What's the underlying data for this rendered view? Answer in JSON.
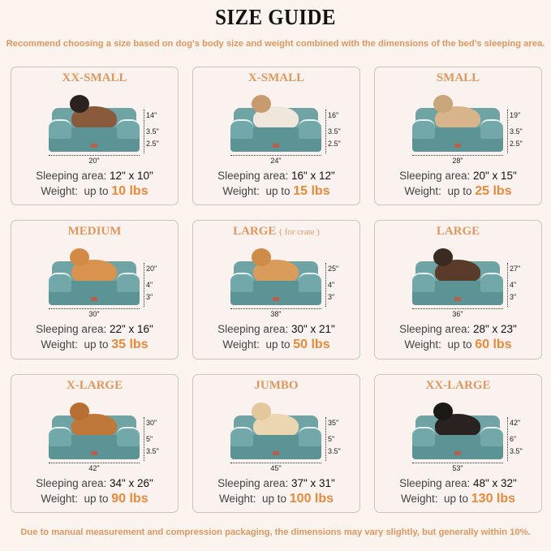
{
  "title": "SIZE GUIDE",
  "subtitle": "Recommend choosing a size based on dog's body size and weight combined with the dimensions of the bed's sleeping area.",
  "footer": "Due to manual measurement and compression packaging, the dimensions may vary slightly, but generally within 10%.",
  "labels": {
    "sleeping": "Sleeping area:",
    "weight": "Weight:",
    "up_to": "up to"
  },
  "colors": {
    "accent": "#e0975f",
    "weight": "#e88a3c",
    "bed": "#5c9496",
    "background": "#fbf3ee"
  },
  "sizes": [
    {
      "name": "XX-SMALL",
      "note": "",
      "height": "14\"",
      "top": "3.5\"",
      "bottom": "2.5\"",
      "width": "20\"",
      "sleeping": "12\" x 10\"",
      "weight": "10 lbs",
      "pet_color": "#8a5a3c",
      "head_color": "#2b2220"
    },
    {
      "name": "X-SMALL",
      "note": "",
      "height": "16\"",
      "top": "3.5\"",
      "bottom": "2.5\"",
      "width": "24\"",
      "sleeping": "16\" x 12\"",
      "weight": "15 lbs",
      "pet_color": "#efe6dc",
      "head_color": "#c99a6e"
    },
    {
      "name": "SMALL",
      "note": "",
      "height": "19\"",
      "top": "3.5\"",
      "bottom": "2.5\"",
      "width": "28\"",
      "sleeping": "20\" x 15\"",
      "weight": "25 lbs",
      "pet_color": "#d7b48a",
      "head_color": "#c9a57a"
    },
    {
      "name": "MEDIUM",
      "note": "",
      "height": "20\"",
      "top": "4\"",
      "bottom": "3\"",
      "width": "30\"",
      "sleeping": "22\" x 16\"",
      "weight": "35 lbs",
      "pet_color": "#d9934f",
      "head_color": "#d38a45"
    },
    {
      "name": "LARGE",
      "note": "( for crate )",
      "height": "25\"",
      "top": "4\"",
      "bottom": "3\"",
      "width": "38\"",
      "sleeping": "30\" x 21\"",
      "weight": "50 lbs",
      "pet_color": "#d99c5a",
      "head_color": "#cf8c48"
    },
    {
      "name": "LARGE",
      "note": "",
      "height": "27\"",
      "top": "4\"",
      "bottom": "3\"",
      "width": "36\"",
      "sleeping": "28\" x 23\"",
      "weight": "60 lbs",
      "pet_color": "#5a3a28",
      "head_color": "#3b2a20"
    },
    {
      "name": "X-LARGE",
      "note": "",
      "height": "30\"",
      "top": "5\"",
      "bottom": "3.5\"",
      "width": "42\"",
      "sleeping": "34\" x 26\"",
      "weight": "90 lbs",
      "pet_color": "#c0783a",
      "head_color": "#b86e30"
    },
    {
      "name": "JUMBO",
      "note": "",
      "height": "35\"",
      "top": "5\"",
      "bottom": "3.5\"",
      "width": "45\"",
      "sleeping": "37\" x 31\"",
      "weight": "100 lbs",
      "pet_color": "#ecd6b2",
      "head_color": "#e3c89e"
    },
    {
      "name": "XX-LARGE",
      "note": "",
      "height": "42\"",
      "top": "6\"",
      "bottom": "3.5\"",
      "width": "53\"",
      "sleeping": "48\" x 32\"",
      "weight": "130 lbs",
      "pet_color": "#2a2220",
      "head_color": "#1c1816"
    }
  ]
}
